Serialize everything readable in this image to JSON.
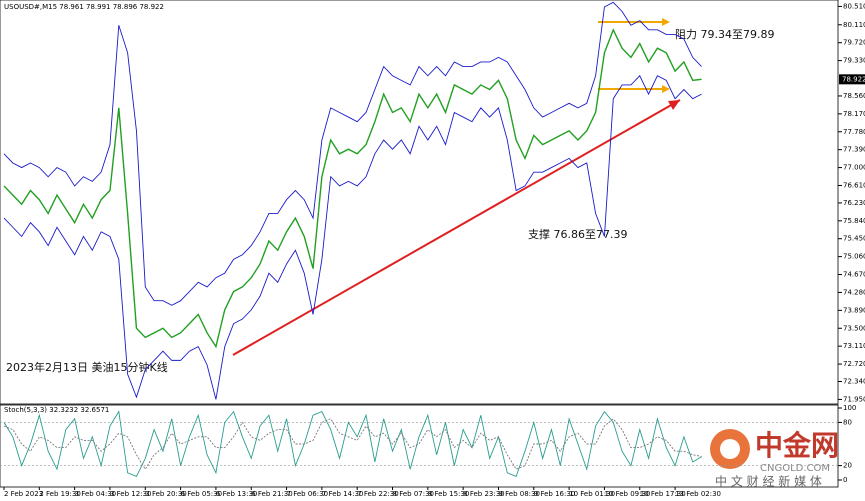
{
  "chart_data": [
    {
      "type": "line",
      "title": "USOUSD#,M15 78.961 78.991 78.896 78.922",
      "categories": [
        "2 Feb 2023",
        null,
        null,
        null,
        "2 Feb 19:30",
        null,
        null,
        null,
        "3 Feb 04:30",
        null,
        null,
        null,
        "3 Feb 12:30",
        null,
        null,
        null,
        "3 Feb 20:30",
        null,
        null,
        null,
        "6 Feb 05:30",
        null,
        null,
        null,
        "6 Feb 13:30",
        null,
        null,
        null,
        "6 Feb 21:30",
        null,
        null,
        null,
        "7 Feb 06:30",
        null,
        null,
        null,
        "7 Feb 14:30",
        null,
        null,
        null,
        "7 Feb 22:30",
        null,
        null,
        null,
        "8 Feb 07:30",
        null,
        null,
        null,
        "8 Feb 15:30",
        null,
        null,
        null,
        "8 Feb 23:30",
        null,
        null,
        null,
        "9 Feb 08:30",
        null,
        null,
        null,
        "9 Feb 16:30",
        null,
        null,
        null,
        "10 Feb 01:30",
        null,
        null,
        null,
        "10 Feb 09:30",
        null,
        null,
        null,
        "10 Feb 17:30",
        null,
        null,
        null,
        "13 Feb 02:30",
        null,
        null,
        null
      ],
      "series": [
        {
          "name": "Close",
          "color": "#22a022",
          "values": [
            76.6,
            76.4,
            76.2,
            76.5,
            76.3,
            76.0,
            76.4,
            76.1,
            75.8,
            76.2,
            75.9,
            76.3,
            76.5,
            78.3,
            76.0,
            73.5,
            73.3,
            73.4,
            73.5,
            73.3,
            73.4,
            73.6,
            73.8,
            73.4,
            73.1,
            73.9,
            74.3,
            74.4,
            74.6,
            74.9,
            75.4,
            75.2,
            75.6,
            75.9,
            75.5,
            74.8,
            76.8,
            77.6,
            77.3,
            77.4,
            77.3,
            77.5,
            78.0,
            78.6,
            78.2,
            78.3,
            78.0,
            78.6,
            78.3,
            78.6,
            78.2,
            78.8,
            78.7,
            78.6,
            78.8,
            78.7,
            78.9,
            78.5,
            77.6,
            77.2,
            77.7,
            77.5,
            77.6,
            77.7,
            77.8,
            77.6,
            77.8,
            78.2,
            79.5,
            80.0,
            79.6,
            79.4,
            79.7,
            79.3,
            79.6,
            79.5,
            79.1,
            79.3,
            78.9,
            78.922
          ]
        },
        {
          "name": "Upper",
          "color": "#1a1acc",
          "values": [
            77.3,
            77.1,
            77.0,
            77.1,
            77.0,
            76.8,
            77.0,
            76.9,
            76.6,
            76.8,
            76.7,
            76.9,
            77.5,
            80.1,
            79.5,
            77.8,
            74.4,
            74.1,
            74.1,
            74.0,
            74.1,
            74.3,
            74.5,
            74.4,
            74.6,
            74.7,
            75.0,
            75.1,
            75.3,
            75.6,
            76.0,
            76.0,
            76.3,
            76.5,
            76.3,
            75.9,
            77.6,
            78.3,
            78.2,
            78.1,
            78.0,
            78.2,
            78.7,
            79.2,
            79.0,
            78.9,
            78.8,
            79.2,
            79.0,
            79.2,
            79.0,
            79.3,
            79.2,
            79.2,
            79.3,
            79.3,
            79.4,
            79.3,
            79.0,
            78.7,
            78.3,
            78.1,
            78.2,
            78.3,
            78.4,
            78.3,
            78.4,
            79.0,
            80.5,
            80.6,
            80.4,
            80.1,
            80.2,
            80.0,
            80.0,
            79.9,
            79.9,
            79.8,
            79.4,
            79.2
          ]
        },
        {
          "name": "Lower",
          "color": "#1a1acc",
          "values": [
            75.9,
            75.7,
            75.5,
            75.8,
            75.6,
            75.3,
            75.7,
            75.4,
            75.1,
            75.5,
            75.2,
            75.6,
            75.5,
            75.0,
            72.5,
            72.0,
            72.6,
            72.8,
            73.0,
            72.8,
            72.8,
            73.0,
            73.1,
            72.7,
            71.95,
            73.1,
            73.6,
            73.7,
            73.9,
            74.2,
            74.7,
            74.5,
            74.9,
            75.2,
            74.7,
            73.8,
            75.0,
            76.8,
            76.6,
            76.7,
            76.6,
            76.8,
            77.3,
            77.6,
            77.4,
            77.6,
            77.3,
            77.9,
            77.6,
            77.9,
            77.5,
            78.2,
            78.1,
            78.0,
            78.3,
            78.1,
            78.3,
            77.6,
            76.5,
            76.6,
            76.9,
            76.9,
            77.0,
            77.1,
            77.2,
            77.0,
            77.1,
            76.0,
            75.5,
            78.5,
            78.8,
            78.8,
            79.0,
            78.6,
            79.0,
            78.9,
            78.5,
            78.7,
            78.5,
            78.6
          ]
        }
      ],
      "ylim": [
        71.85,
        80.65
      ],
      "yticks": [
        {
          "value": 80.51,
          "label": "80.510"
        },
        {
          "value": 80.11,
          "label": "80.110"
        },
        {
          "value": 79.72,
          "label": "79.720"
        },
        {
          "value": 79.33,
          "label": "79.330"
        },
        {
          "value": 78.56,
          "label": "78.560"
        },
        {
          "value": 78.17,
          "label": "78.170"
        },
        {
          "value": 77.78,
          "label": "77.780"
        },
        {
          "value": 77.39,
          "label": "77.390"
        },
        {
          "value": 77.0,
          "label": "77.000"
        },
        {
          "value": 76.61,
          "label": "76.610"
        },
        {
          "value": 76.23,
          "label": "76.230"
        },
        {
          "value": 75.84,
          "label": "75.840"
        },
        {
          "value": 75.45,
          "label": "75.450"
        },
        {
          "value": 75.06,
          "label": "75.060"
        },
        {
          "value": 74.67,
          "label": "74.670"
        },
        {
          "value": 74.28,
          "label": "74.280"
        },
        {
          "value": 73.89,
          "label": "73.890"
        },
        {
          "value": 73.5,
          "label": "73.500"
        },
        {
          "value": 73.11,
          "label": "73.110"
        },
        {
          "value": 72.72,
          "label": "72.720"
        },
        {
          "value": 72.34,
          "label": "72.340"
        },
        {
          "value": 71.95,
          "label": "71.950"
        }
      ],
      "current_price": 78.922,
      "annotations": [
        "阻力 79.34至79.89",
        "支撑 76.86至77.39",
        "2023年2月13日 美油15分钟K线"
      ]
    },
    {
      "type": "line",
      "title": "Stoch(5,3,3) 32.3232 32.6571",
      "series": [
        {
          "name": "%K",
          "color": "#2a9d8f",
          "values": [
            80,
            60,
            20,
            50,
            90,
            40,
            15,
            70,
            85,
            30,
            60,
            20,
            75,
            95,
            10,
            5,
            30,
            70,
            40,
            85,
            20,
            60,
            90,
            35,
            10,
            80,
            95,
            60,
            30,
            75,
            90,
            40,
            85,
            20,
            50,
            90,
            95,
            70,
            30,
            80,
            60,
            90,
            25,
            85,
            40,
            70,
            15,
            60,
            90,
            35,
            80,
            20,
            70,
            45,
            90,
            30,
            60,
            10,
            5,
            40,
            80,
            30,
            70,
            20,
            85,
            50,
            15,
            75,
            95,
            80,
            40,
            20,
            70,
            30,
            85,
            45,
            20,
            60,
            25,
            32.3232
          ]
        },
        {
          "name": "%D",
          "color": "#777777",
          "values": [
            75,
            70,
            50,
            40,
            60,
            55,
            45,
            45,
            60,
            55,
            55,
            40,
            50,
            65,
            60,
            35,
            15,
            35,
            45,
            65,
            50,
            55,
            60,
            60,
            45,
            45,
            60,
            80,
            60,
            55,
            65,
            70,
            70,
            50,
            50,
            55,
            80,
            85,
            65,
            60,
            55,
            75,
            60,
            65,
            50,
            65,
            45,
            50,
            70,
            60,
            70,
            45,
            55,
            45,
            65,
            55,
            60,
            35,
            15,
            20,
            50,
            50,
            55,
            40,
            60,
            65,
            50,
            50,
            75,
            85,
            70,
            45,
            45,
            50,
            60,
            55,
            40,
            40,
            35,
            32.6571
          ]
        }
      ],
      "ylim": [
        0,
        100
      ],
      "yticks": [
        0,
        20,
        80,
        100
      ]
    }
  ],
  "watermark": {
    "brand": "中金网",
    "domain": "CNGOLD.COM",
    "slogan": "中 文 财 经 新 媒 体"
  }
}
